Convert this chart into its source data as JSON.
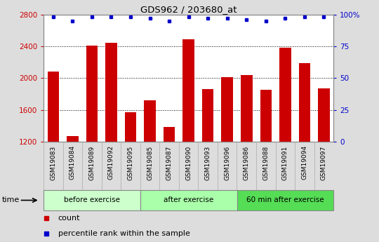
{
  "title": "GDS962 / 203680_at",
  "categories": [
    "GSM19083",
    "GSM19084",
    "GSM19089",
    "GSM19092",
    "GSM19095",
    "GSM19085",
    "GSM19087",
    "GSM19090",
    "GSM19093",
    "GSM19096",
    "GSM19086",
    "GSM19088",
    "GSM19091",
    "GSM19094",
    "GSM19097"
  ],
  "counts": [
    2080,
    1270,
    2410,
    2440,
    1570,
    1720,
    1380,
    2490,
    1860,
    2010,
    2040,
    1850,
    2380,
    2190,
    1870
  ],
  "percentile_values": [
    98,
    95,
    98,
    98,
    98,
    97,
    95,
    98,
    97,
    97,
    96,
    95,
    97,
    98,
    98
  ],
  "bar_color": "#cc0000",
  "percentile_color": "#0000cc",
  "ylim_left": [
    1200,
    2800
  ],
  "ylim_right": [
    0,
    100
  ],
  "yticks_left": [
    1200,
    1600,
    2000,
    2400,
    2800
  ],
  "yticks_right": [
    0,
    25,
    50,
    75,
    100
  ],
  "groups": [
    {
      "label": "before exercise",
      "start": 0,
      "end": 5
    },
    {
      "label": "after exercise",
      "start": 5,
      "end": 10
    },
    {
      "label": "60 min after exercise",
      "start": 10,
      "end": 15
    }
  ],
  "group_colors": [
    "#ccffcc",
    "#aaffaa",
    "#55dd55"
  ],
  "xlabel_time": "time",
  "legend_count": "count",
  "legend_percentile": "percentile rank within the sample",
  "bg_color": "#dddddd",
  "plot_bg_color": "#ffffff",
  "xtick_bg_color": "#cccccc",
  "tick_label_color_left": "#cc0000",
  "tick_label_color_right": "#0000cc"
}
